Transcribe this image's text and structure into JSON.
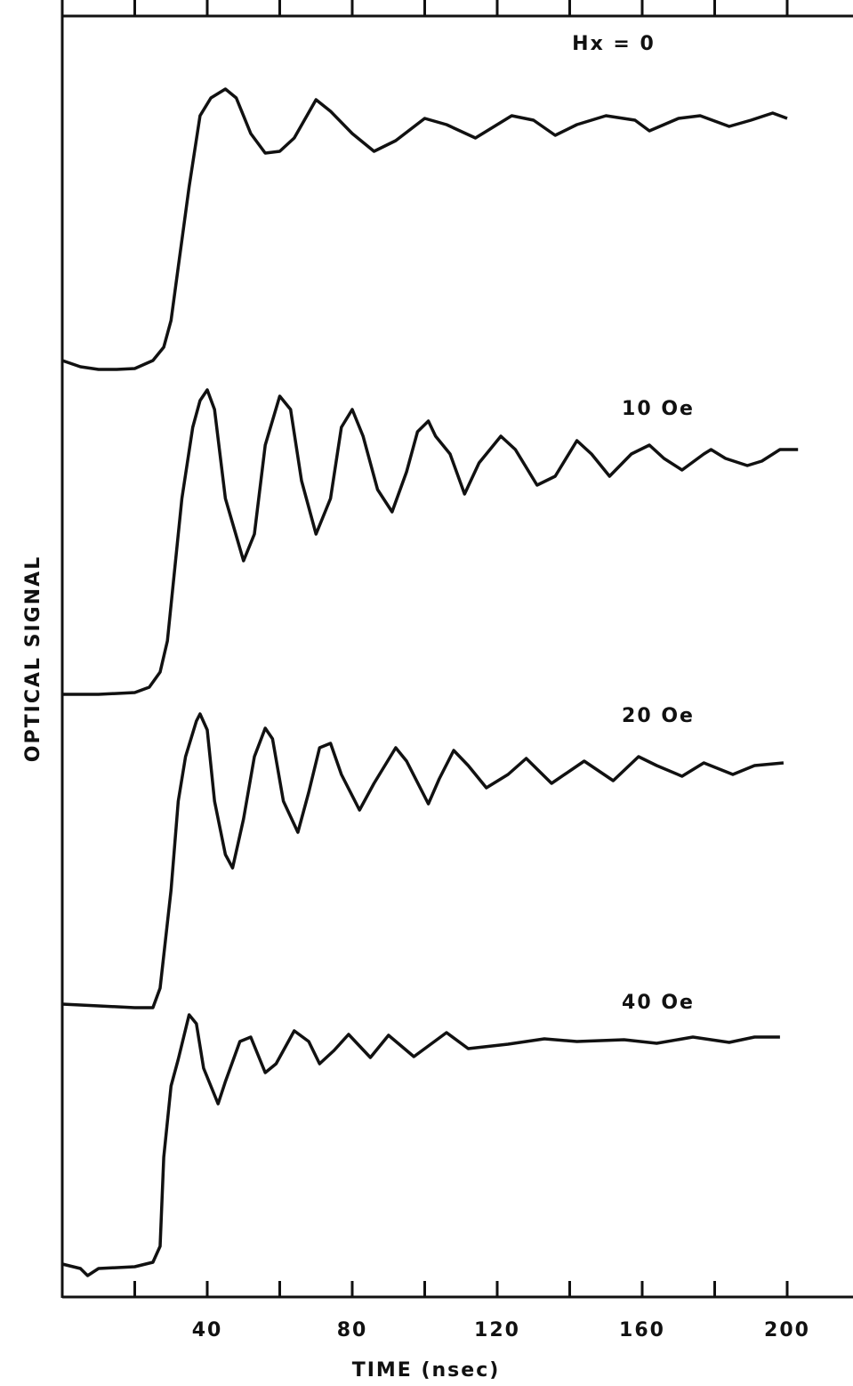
{
  "chart_data": {
    "type": "line",
    "x_label": "TIME (nsec)",
    "y_label": "OPTICAL SIGNAL",
    "xlim": [
      0,
      218
    ],
    "ylim": [
      0,
      1440
    ],
    "xticks": [
      40,
      80,
      120,
      160,
      200
    ],
    "xminor_ticks": [
      20,
      60,
      100,
      140,
      180
    ],
    "series": [
      {
        "name": "Hx = 0",
        "color": "#111111",
        "x": [
          0,
          5,
          10,
          15,
          20,
          25,
          28,
          30,
          32,
          35,
          38,
          41,
          45,
          48,
          52,
          56,
          60,
          64,
          70,
          74,
          80,
          86,
          92,
          100,
          106,
          114,
          124,
          130,
          136,
          142,
          150,
          158,
          162,
          170,
          176,
          184,
          190,
          196,
          200
        ],
        "values": [
          1052,
          1045,
          1042,
          1042,
          1043,
          1052,
          1067,
          1097,
          1157,
          1247,
          1327,
          1347,
          1357,
          1347,
          1307,
          1285,
          1287,
          1302,
          1345,
          1332,
          1307,
          1287,
          1299,
          1324,
          1317,
          1302,
          1327,
          1322,
          1305,
          1317,
          1327,
          1322,
          1310,
          1324,
          1327,
          1315,
          1322,
          1330,
          1324
        ]
      },
      {
        "name": "10 Oe",
        "color": "#111111",
        "x": [
          0,
          10,
          20,
          24,
          27,
          29,
          33,
          36,
          38,
          40,
          42,
          45,
          50,
          53,
          56,
          60,
          63,
          66,
          70,
          74,
          77,
          80,
          83,
          87,
          91,
          95,
          98,
          101,
          103,
          107,
          111,
          115,
          121,
          125,
          131,
          136,
          142,
          146,
          151,
          157,
          162,
          166,
          171,
          177,
          179,
          183,
          189,
          193,
          198,
          203
        ],
        "values": [
          677,
          677,
          679,
          685,
          702,
          737,
          897,
          977,
          1007,
          1019,
          997,
          897,
          827,
          857,
          957,
          1012,
          997,
          917,
          857,
          897,
          977,
          997,
          967,
          907,
          882,
          927,
          972,
          984,
          967,
          947,
          902,
          937,
          967,
          952,
          912,
          922,
          962,
          947,
          922,
          947,
          957,
          942,
          929,
          947,
          952,
          942,
          934,
          939,
          952,
          952
        ]
      },
      {
        "name": "20 Oe",
        "color": "#111111",
        "x": [
          0,
          10,
          20,
          25,
          27,
          30,
          32,
          34,
          37,
          38,
          40,
          42,
          45,
          47,
          50,
          53,
          56,
          58,
          61,
          65,
          68,
          71,
          74,
          77,
          82,
          86,
          92,
          95,
          101,
          104,
          108,
          112,
          117,
          123,
          128,
          135,
          144,
          152,
          159,
          164,
          171,
          177,
          185,
          191,
          199
        ],
        "values": [
          329,
          327,
          325,
          325,
          347,
          457,
          557,
          607,
          647,
          655,
          637,
          557,
          497,
          482,
          537,
          607,
          639,
          627,
          557,
          522,
          567,
          617,
          622,
          587,
          547,
          577,
          617,
          602,
          554,
          582,
          614,
          597,
          572,
          587,
          605,
          577,
          602,
          580,
          607,
          597,
          585,
          600,
          587,
          597,
          600
        ]
      },
      {
        "name": "40 Oe",
        "color": "#111111",
        "x": [
          0,
          5,
          7,
          10,
          20,
          25,
          27,
          28,
          30,
          32,
          35,
          37,
          39,
          43,
          45,
          49,
          52,
          56,
          59,
          64,
          68,
          71,
          75,
          79,
          85,
          90,
          97,
          106,
          112,
          123,
          133,
          142,
          155,
          164,
          174,
          184,
          191,
          198
        ],
        "values": [
          37,
          32,
          24,
          32,
          34,
          39,
          57,
          157,
          237,
          267,
          317,
          307,
          257,
          217,
          242,
          287,
          292,
          252,
          262,
          299,
          287,
          262,
          277,
          295,
          269,
          294,
          270,
          297,
          279,
          284,
          290,
          287,
          289,
          285,
          292,
          286,
          292,
          292
        ]
      }
    ]
  }
}
